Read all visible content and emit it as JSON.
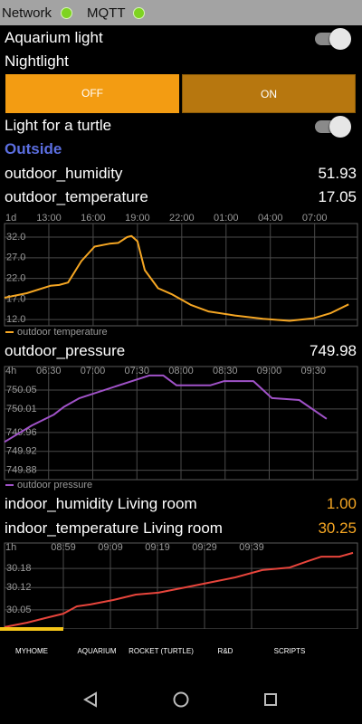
{
  "status_bar": {
    "items": [
      "Network",
      "MQTT"
    ]
  },
  "controls": {
    "aquarium_light": "Aquarium light",
    "nightlight": {
      "label": "Nightlight",
      "options": [
        "OFF",
        "ON"
      ]
    },
    "turtle_light": "Light for a turtle"
  },
  "section": "Outside",
  "sensors": [
    {
      "name": "outdoor_humidity",
      "value": "51.93"
    },
    {
      "name": "outdoor_temperature",
      "value": "17.05"
    },
    {
      "name": "outdoor_pressure",
      "value": "749.98"
    },
    {
      "name": "indoor_humidity Living room",
      "value": "1.00"
    },
    {
      "name": "indoor_temperature Living room",
      "value": "30.25"
    }
  ],
  "chart_data": [
    {
      "type": "line",
      "range": "1d",
      "xlim": [
        10,
        33.9
      ],
      "xticks": [
        {
          "value": 13,
          "label": "13:00"
        },
        {
          "value": 16,
          "label": "16:00"
        },
        {
          "value": 19,
          "label": "19:00"
        },
        {
          "value": 22,
          "label": "22:00"
        },
        {
          "value": 25,
          "label": "01:00"
        },
        {
          "value": 28,
          "label": "04:00"
        },
        {
          "value": 31,
          "label": "07:00"
        }
      ],
      "ylim": [
        10.5,
        35.3
      ],
      "yticks": [
        {
          "value": 32,
          "label": "32.0"
        },
        {
          "value": 27,
          "label": "27.0"
        },
        {
          "value": 22,
          "label": "22.0"
        },
        {
          "value": 17,
          "label": "17.0"
        },
        {
          "value": 12,
          "label": "12.0"
        }
      ],
      "grid": true,
      "series": [
        {
          "name": "outdoor temperature",
          "color": "#f5a623",
          "x": [
            10.0,
            11.5,
            13.1,
            13.7,
            14.3,
            15.2,
            16.1,
            17.1,
            17.7,
            18.3,
            18.6,
            19.0,
            19.5,
            20.4,
            21.3,
            22.6,
            23.8,
            25.6,
            27.5,
            29.3,
            30.9,
            32.1,
            33.3
          ],
          "values": [
            17.3,
            18.4,
            20.2,
            20.4,
            21.0,
            26.2,
            29.7,
            30.4,
            30.6,
            32.0,
            32.3,
            31.0,
            24.0,
            19.6,
            18.2,
            15.6,
            14.0,
            13.0,
            12.2,
            11.7,
            12.3,
            13.6,
            15.7
          ]
        }
      ]
    },
    {
      "type": "line",
      "range": "4h",
      "xlim": [
        6,
        10
      ],
      "xticks": [
        {
          "value": 6.5,
          "label": "06:30"
        },
        {
          "value": 7,
          "label": "07:00"
        },
        {
          "value": 7.5,
          "label": "07:30"
        },
        {
          "value": 8,
          "label": "08:00"
        },
        {
          "value": 8.5,
          "label": "08:30"
        },
        {
          "value": 9,
          "label": "09:00"
        },
        {
          "value": 9.5,
          "label": "09:30"
        }
      ],
      "ylim": [
        749.86,
        750.1
      ],
      "yticks": [
        750.05,
        750.01,
        749.96,
        749.92,
        749.88
      ],
      "grid": true,
      "series": [
        {
          "name": "outdoor pressure",
          "color": "#a052c8",
          "x": [
            6.0,
            6.31,
            6.56,
            6.67,
            6.85,
            7.64,
            7.8,
            7.95,
            8.33,
            8.49,
            8.82,
            9.03,
            9.18,
            9.34,
            9.65
          ],
          "values": [
            749.94,
            749.975,
            749.998,
            750.014,
            750.033,
            750.081,
            750.081,
            750.06,
            750.06,
            750.069,
            750.069,
            750.033,
            750.031,
            750.029,
            749.989
          ]
        }
      ]
    },
    {
      "type": "line",
      "range": "1h",
      "xlim": [
        8.775,
        10.025
      ],
      "xticks": [
        {
          "value": 8.9833,
          "label": "08:59"
        },
        {
          "value": 9.15,
          "label": "09:09"
        },
        {
          "value": 9.3167,
          "label": "09:19"
        },
        {
          "value": 9.4833,
          "label": "09:29"
        },
        {
          "value": 9.65,
          "label": "09:39"
        }
      ],
      "ylim": [
        29.99,
        30.26
      ],
      "yticks": [
        30.18,
        30.12,
        30.05
      ],
      "grid": true,
      "series": [
        {
          "name": "indoor temperature",
          "color": "#e8453c",
          "x": [
            8.775,
            8.855,
            8.919,
            8.983,
            9.031,
            9.079,
            9.16,
            9.24,
            9.32,
            9.4,
            9.48,
            9.592,
            9.688,
            9.785,
            9.849,
            9.897,
            9.961,
            10.009
          ],
          "values": [
            29.996,
            30.01,
            30.024,
            30.038,
            30.061,
            30.067,
            30.081,
            30.098,
            30.104,
            30.118,
            30.132,
            30.152,
            30.175,
            30.183,
            30.203,
            30.217,
            30.217,
            30.229
          ]
        }
      ]
    }
  ],
  "tabs": [
    "MYHOME",
    "AQUARIUM",
    "ROCKET (TURTLE)",
    "R&D",
    "SCRIPTS"
  ]
}
